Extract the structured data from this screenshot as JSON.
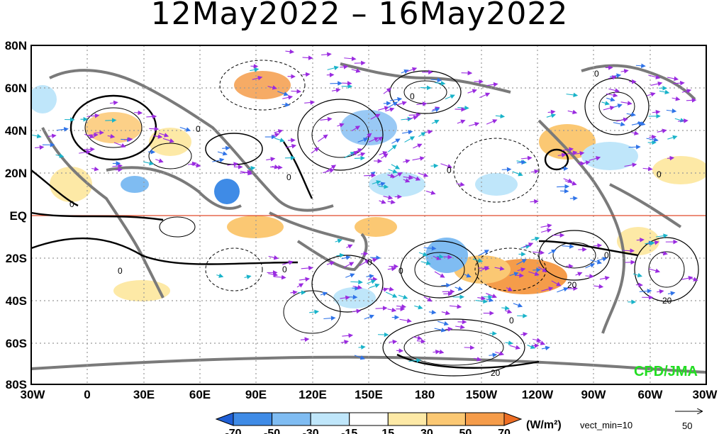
{
  "title": "12May2022 – 16May2022",
  "lat_labels": [
    "80N",
    "60N",
    "40N",
    "20N",
    "EQ",
    "20S",
    "40S",
    "60S",
    "80S"
  ],
  "lon_labels": [
    "30W",
    "0",
    "30E",
    "60E",
    "90E",
    "120E",
    "150E",
    "180",
    "150W",
    "120W",
    "90W",
    "60W",
    "30W"
  ],
  "colorbar": {
    "ticks": [
      "-70",
      "-50",
      "-30",
      "-15",
      "15",
      "30",
      "50",
      "70"
    ],
    "unit": "(W/m²)",
    "colors": [
      "#1f5fd6",
      "#3f8be6",
      "#7fbcf2",
      "#bfe6fa",
      "#ffffff",
      "#fde9a6",
      "#fbc873",
      "#f59c4a",
      "#ee6e24"
    ],
    "vector_label": "vect_min=10"
  },
  "reference_vector": {
    "value": "50"
  },
  "credit": "CPD/JMA",
  "contour_labels": [
    "0",
    "0",
    "0",
    "0",
    "0",
    "0",
    "0",
    "0",
    "0",
    "0",
    "0",
    "0",
    "0",
    "20",
    "20",
    "20"
  ]
}
